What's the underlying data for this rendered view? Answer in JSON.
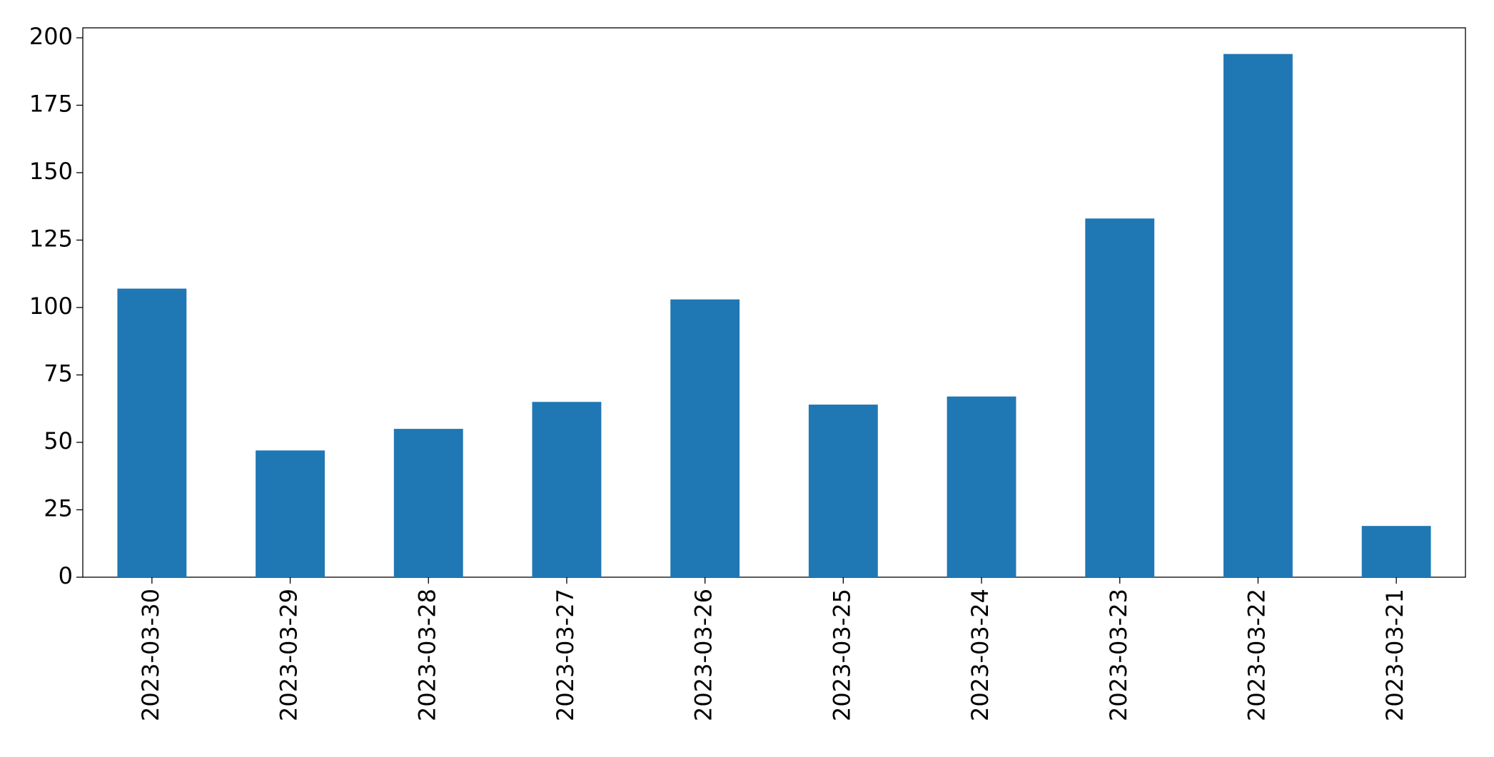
{
  "chart_data": {
    "type": "bar",
    "categories": [
      "2023-03-30",
      "2023-03-29",
      "2023-03-28",
      "2023-03-27",
      "2023-03-26",
      "2023-03-25",
      "2023-03-24",
      "2023-03-23",
      "2023-03-22",
      "2023-03-21"
    ],
    "values": [
      107,
      47,
      55,
      65,
      103,
      64,
      67,
      133,
      194,
      19
    ],
    "color": "#1f77b4",
    "ylim": [
      0,
      203.7
    ],
    "yticks": [
      0,
      25,
      50,
      75,
      100,
      125,
      150,
      175,
      200
    ],
    "grid": false
  }
}
